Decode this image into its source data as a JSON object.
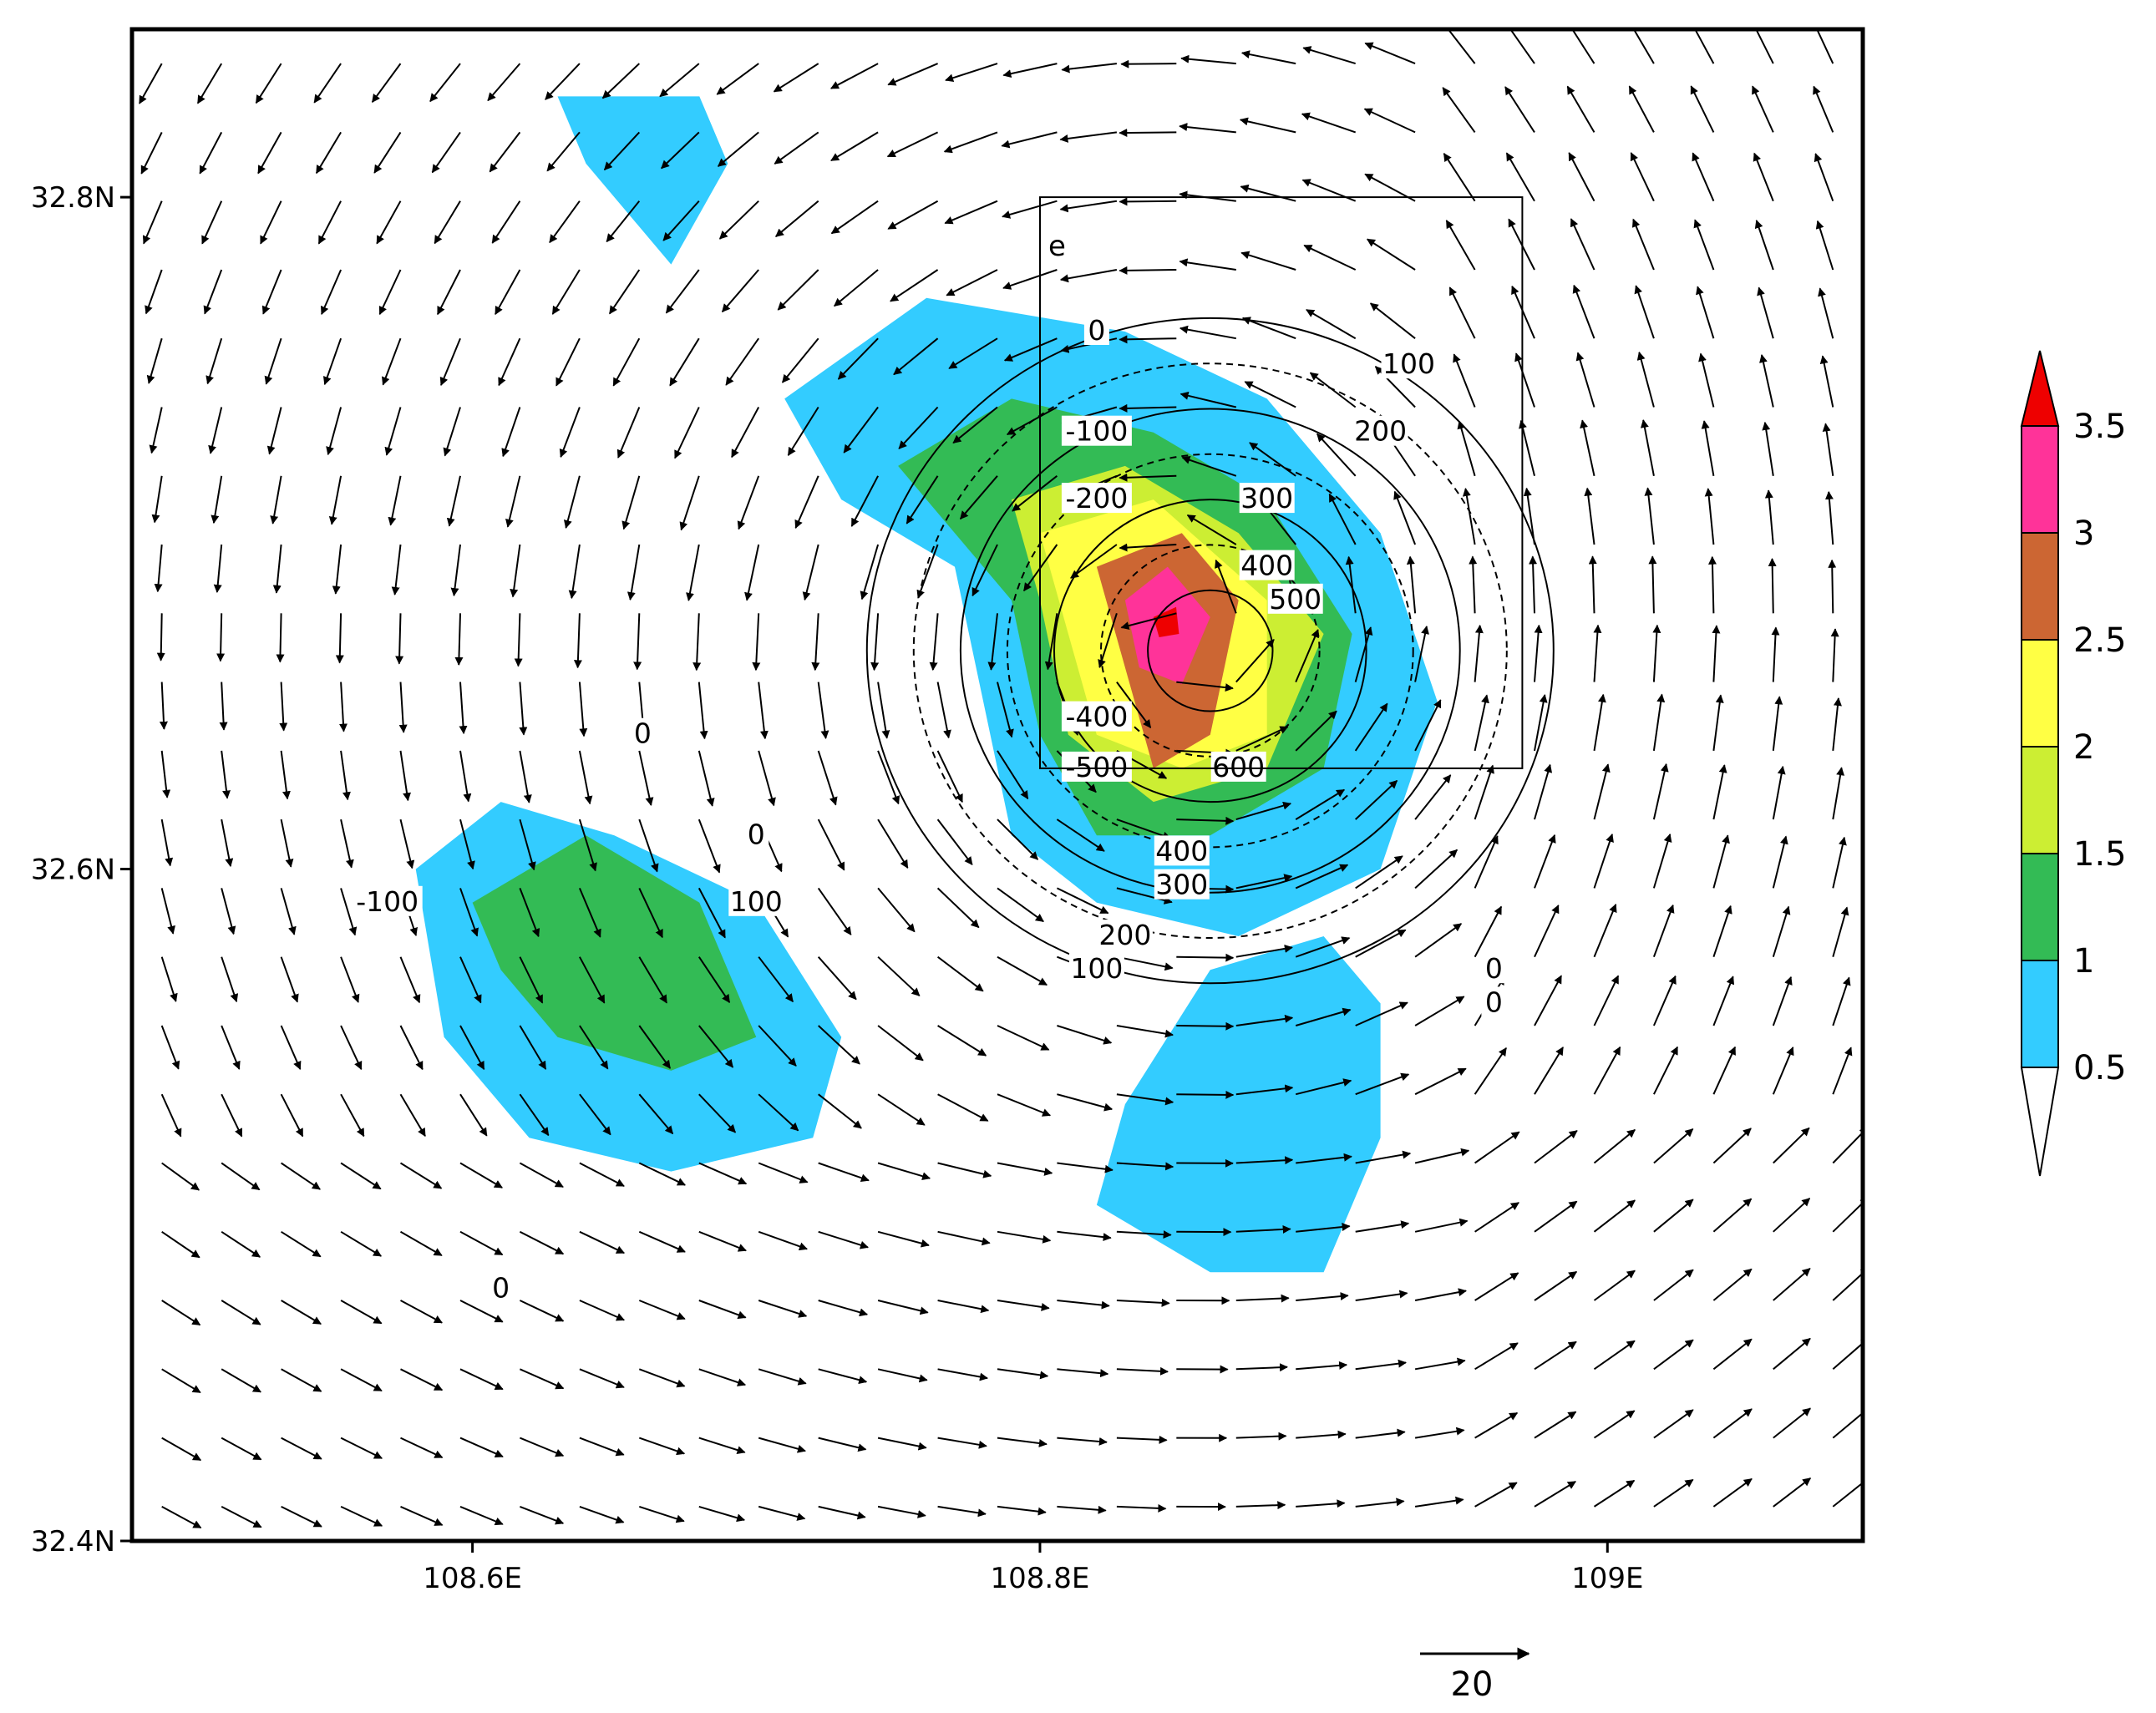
{
  "chart_data": {
    "type": "contour-vector-map",
    "title": "",
    "xlabel": "",
    "ylabel": "",
    "xlim": [
      108.48,
      109.09
    ],
    "ylim": [
      32.4,
      32.85
    ],
    "x_ticks": [
      108.6,
      108.8,
      109.0
    ],
    "x_tick_labels": [
      "108.6E",
      "108.8E",
      "109E"
    ],
    "y_ticks": [
      32.4,
      32.6,
      32.8
    ],
    "y_tick_labels": [
      "32.4N",
      "32.6N",
      "32.8N"
    ],
    "grid": false,
    "legend": "colorbar-right",
    "colorbar": {
      "levels": [
        "0.5",
        "1",
        "1.5",
        "2",
        "2.5",
        "3",
        "3.5"
      ],
      "colors": [
        "#ffffff",
        "#33ccff",
        "#33bb55",
        "#ccee33",
        "#ffff44",
        "#cc6633",
        "#ff3399",
        "#ee0000"
      ]
    },
    "vector_reference": {
      "label": "20",
      "magnitude": 20
    },
    "box": {
      "label": "e",
      "lon": [
        108.8,
        108.97
      ],
      "lat": [
        32.63,
        32.8
      ]
    },
    "fill_regions": [
      {
        "level": 0.5,
        "points": [
          [
            108.63,
            32.83
          ],
          [
            108.68,
            32.83
          ],
          [
            108.69,
            32.81
          ],
          [
            108.67,
            32.78
          ],
          [
            108.64,
            32.81
          ]
        ]
      },
      {
        "level": 0.5,
        "points": [
          [
            108.71,
            32.74
          ],
          [
            108.76,
            32.77
          ],
          [
            108.83,
            32.76
          ],
          [
            108.88,
            32.74
          ],
          [
            108.92,
            32.7
          ],
          [
            108.94,
            32.65
          ],
          [
            108.92,
            32.6
          ],
          [
            108.87,
            32.58
          ],
          [
            108.82,
            32.59
          ],
          [
            108.79,
            32.61
          ],
          [
            108.78,
            32.65
          ],
          [
            108.77,
            32.69
          ],
          [
            108.73,
            32.71
          ]
        ]
      },
      {
        "level": 1.0,
        "points": [
          [
            108.75,
            32.72
          ],
          [
            108.79,
            32.74
          ],
          [
            108.84,
            32.73
          ],
          [
            108.88,
            32.71
          ],
          [
            108.91,
            32.67
          ],
          [
            108.9,
            32.63
          ],
          [
            108.86,
            32.61
          ],
          [
            108.82,
            32.61
          ],
          [
            108.8,
            32.64
          ],
          [
            108.79,
            32.68
          ],
          [
            108.77,
            32.7
          ]
        ]
      },
      {
        "level": 1.5,
        "points": [
          [
            108.79,
            32.71
          ],
          [
            108.83,
            32.72
          ],
          [
            108.87,
            32.7
          ],
          [
            108.9,
            32.67
          ],
          [
            108.88,
            32.63
          ],
          [
            108.84,
            32.62
          ],
          [
            108.81,
            32.64
          ],
          [
            108.8,
            32.68
          ]
        ]
      },
      {
        "level": 2.0,
        "points": [
          [
            108.8,
            32.7
          ],
          [
            108.84,
            32.71
          ],
          [
            108.88,
            32.68
          ],
          [
            108.88,
            32.64
          ],
          [
            108.85,
            32.63
          ],
          [
            108.82,
            32.64
          ],
          [
            108.81,
            32.67
          ]
        ]
      },
      {
        "level": 2.5,
        "points": [
          [
            108.82,
            32.69
          ],
          [
            108.85,
            32.7
          ],
          [
            108.87,
            32.68
          ],
          [
            108.86,
            32.64
          ],
          [
            108.84,
            32.63
          ],
          [
            108.83,
            32.66
          ]
        ]
      },
      {
        "level": 3.0,
        "points": [
          [
            108.83,
            32.68
          ],
          [
            108.845,
            32.69
          ],
          [
            108.86,
            32.675
          ],
          [
            108.85,
            32.655
          ],
          [
            108.835,
            32.66
          ]
        ]
      },
      {
        "level": 3.5,
        "points": [
          [
            108.84,
            32.675
          ],
          [
            108.848,
            32.678
          ],
          [
            108.849,
            32.67
          ],
          [
            108.842,
            32.669
          ]
        ]
      },
      {
        "level": 0.5,
        "points": [
          [
            108.58,
            32.6
          ],
          [
            108.61,
            32.62
          ],
          [
            108.65,
            32.61
          ],
          [
            108.7,
            32.59
          ],
          [
            108.73,
            32.55
          ],
          [
            108.72,
            32.52
          ],
          [
            108.67,
            32.51
          ],
          [
            108.62,
            32.52
          ],
          [
            108.59,
            32.55
          ]
        ]
      },
      {
        "level": 1.0,
        "points": [
          [
            108.6,
            32.59
          ],
          [
            108.64,
            32.61
          ],
          [
            108.68,
            32.59
          ],
          [
            108.7,
            32.55
          ],
          [
            108.67,
            32.54
          ],
          [
            108.63,
            32.55
          ],
          [
            108.61,
            32.57
          ]
        ]
      },
      {
        "level": 0.5,
        "points": [
          [
            108.82,
            32.5
          ],
          [
            108.86,
            32.48
          ],
          [
            108.9,
            32.48
          ],
          [
            108.92,
            32.52
          ],
          [
            108.92,
            32.56
          ],
          [
            108.9,
            32.58
          ],
          [
            108.86,
            32.57
          ],
          [
            108.83,
            32.53
          ]
        ]
      }
    ],
    "contour_labels": [
      {
        "text": "0",
        "lon": 108.82,
        "lat": 32.76
      },
      {
        "text": "100",
        "lon": 108.93,
        "lat": 32.75
      },
      {
        "text": "200",
        "lon": 108.92,
        "lat": 32.73
      },
      {
        "text": "300",
        "lon": 108.88,
        "lat": 32.71
      },
      {
        "text": "400",
        "lon": 108.88,
        "lat": 32.69
      },
      {
        "text": "500",
        "lon": 108.89,
        "lat": 32.68
      },
      {
        "text": "600",
        "lon": 108.87,
        "lat": 32.63
      },
      {
        "text": "-100",
        "lon": 108.82,
        "lat": 32.73
      },
      {
        "text": "-200",
        "lon": 108.82,
        "lat": 32.71
      },
      {
        "text": "-400",
        "lon": 108.82,
        "lat": 32.645
      },
      {
        "text": "-500",
        "lon": 108.82,
        "lat": 32.63
      },
      {
        "text": "400",
        "lon": 108.85,
        "lat": 32.605
      },
      {
        "text": "300",
        "lon": 108.85,
        "lat": 32.595
      },
      {
        "text": "200",
        "lon": 108.83,
        "lat": 32.58
      },
      {
        "text": "100",
        "lon": 108.82,
        "lat": 32.57
      },
      {
        "text": "0",
        "lon": 108.66,
        "lat": 32.64
      },
      {
        "text": "0",
        "lon": 108.7,
        "lat": 32.61
      },
      {
        "text": "100",
        "lon": 108.7,
        "lat": 32.59
      },
      {
        "text": "-100",
        "lon": 108.57,
        "lat": 32.59
      },
      {
        "text": "0",
        "lon": 108.61,
        "lat": 32.475
      },
      {
        "text": "0",
        "lon": 108.96,
        "lat": 32.57
      },
      {
        "text": "0",
        "lon": 108.96,
        "lat": 32.56
      }
    ]
  }
}
